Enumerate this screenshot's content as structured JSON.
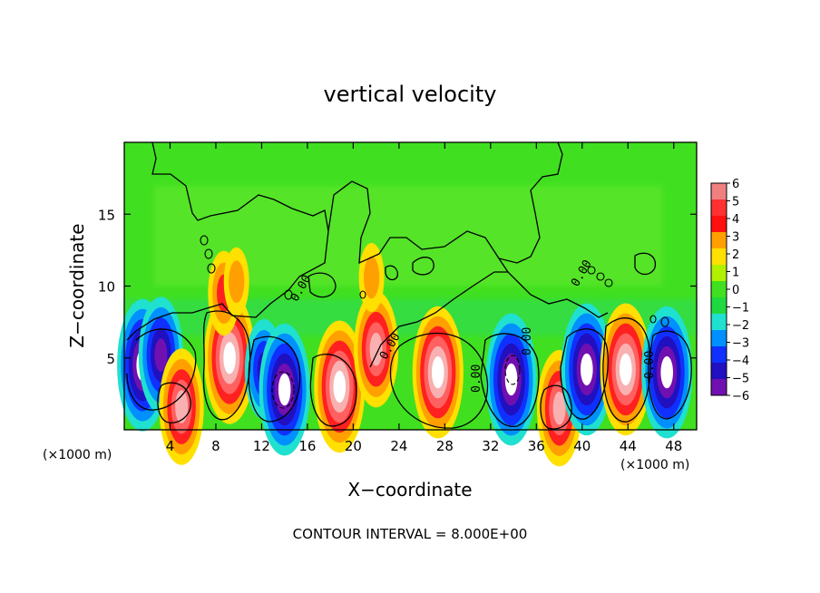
{
  "chart_data": {
    "type": "heatmap",
    "title": "vertical velocity",
    "xlabel": "X−coordinate",
    "ylabel": "Z−coordinate",
    "x_unit_left": "(×1000 m)",
    "x_unit_right": "(×1000 m)",
    "xlim": [
      0,
      50
    ],
    "ylim": [
      0,
      20
    ],
    "x_ticks": [
      4,
      8,
      12,
      16,
      20,
      24,
      28,
      32,
      36,
      40,
      44,
      48
    ],
    "y_ticks": [
      5,
      10,
      15
    ],
    "colorbar": {
      "levels": [
        6,
        5,
        4,
        3,
        2,
        1,
        0,
        -1,
        -2,
        -3,
        -4,
        -5,
        -6
      ],
      "labels": [
        "6",
        "5",
        "4",
        "3",
        "2",
        "1",
        "0",
        "−1",
        "−2",
        "−3",
        "−4",
        "−5",
        "−6"
      ],
      "colors": [
        "#f08080",
        "#ff3030",
        "#ff1010",
        "#ffa000",
        "#ffe000",
        "#b0f000",
        "#40e020",
        "#20d840",
        "#20e0d0",
        "#0090ff",
        "#1030ff",
        "#2010c0",
        "#7010b0"
      ]
    },
    "contour_labels": [
      "0.00",
      "0.00",
      "0.00",
      "0.00",
      "0.00",
      "0.00"
    ],
    "cells": [
      {
        "x": 1.6,
        "z": 4.5,
        "w": -6
      },
      {
        "x": 3.2,
        "z": 5.2,
        "w": -5
      },
      {
        "x": 5.0,
        "z": 1.6,
        "w": 5
      },
      {
        "x": 9.2,
        "z": 5.0,
        "w": 6
      },
      {
        "x": 12.2,
        "z": 4.2,
        "w": -4
      },
      {
        "x": 14.0,
        "z": 2.8,
        "w": -6
      },
      {
        "x": 18.8,
        "z": 3.0,
        "w": 6
      },
      {
        "x": 22.0,
        "z": 5.6,
        "w": 5
      },
      {
        "x": 27.4,
        "z": 4.0,
        "w": 6
      },
      {
        "x": 33.8,
        "z": 3.5,
        "w": -6
      },
      {
        "x": 38.0,
        "z": 1.5,
        "w": 5
      },
      {
        "x": 40.4,
        "z": 4.2,
        "w": -6
      },
      {
        "x": 43.8,
        "z": 4.2,
        "w": 6
      },
      {
        "x": 47.4,
        "z": 4.0,
        "w": -6
      },
      {
        "x": 8.7,
        "z": 9.5,
        "w": 3
      },
      {
        "x": 9.8,
        "z": 10.3,
        "w": 2
      },
      {
        "x": 21.6,
        "z": 10.6,
        "w": 2
      }
    ]
  },
  "footer": {
    "contour_interval": "CONTOUR INTERVAL = 8.000E+00"
  }
}
